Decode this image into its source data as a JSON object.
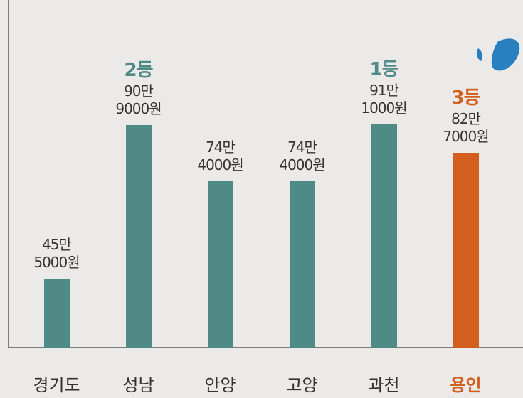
{
  "chart_data": {
    "type": "bar",
    "categories": [
      "경기도",
      "성남",
      "안양",
      "고양",
      "과천",
      "용인"
    ],
    "values": [
      455000,
      909000,
      744000,
      744000,
      911000,
      827000
    ],
    "value_labels": [
      "45만\n5000원",
      "90만\n9000원",
      "74만\n4000원",
      "74만\n4000원",
      "91만\n1000원",
      "82만\n7000원"
    ],
    "rank_labels": [
      null,
      "2등",
      null,
      null,
      "1등",
      "3등"
    ],
    "colors": [
      "#4f8a87",
      "#4f8a87",
      "#4f8a87",
      "#4f8a87",
      "#4f8a87",
      "#d35f1f"
    ],
    "highlight_category_color": "#d35f1f",
    "ylim": [
      250000,
      950000
    ]
  }
}
